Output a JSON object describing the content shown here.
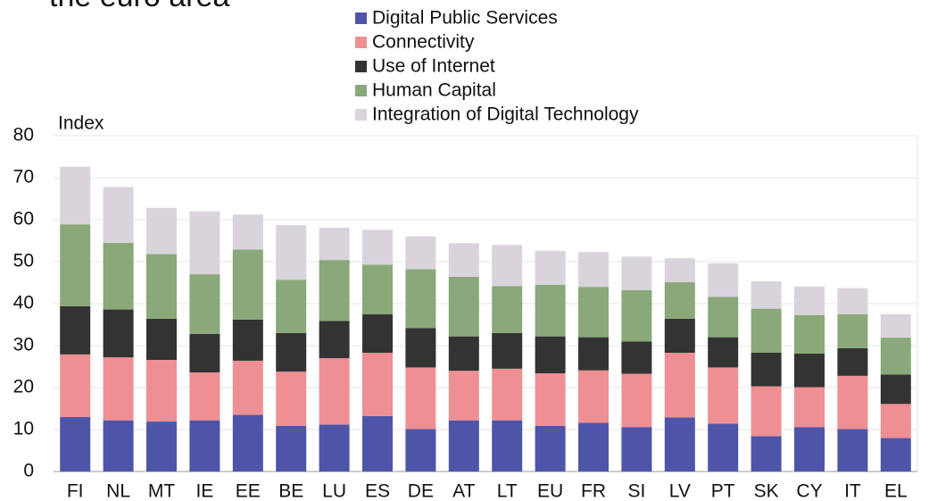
{
  "chart_data": {
    "type": "stacked_bar",
    "title": "the euro area",
    "ylabel": "Index",
    "categories": [
      "FI",
      "NL",
      "MT",
      "IE",
      "EE",
      "BE",
      "LU",
      "ES",
      "DE",
      "AT",
      "LT",
      "EU",
      "FR",
      "SI",
      "LV",
      "PT",
      "SK",
      "CY",
      "IT",
      "EL"
    ],
    "series": [
      {
        "name": "Digital Public Services",
        "color": "#4e55a8",
        "values": [
          13,
          12.2,
          11.9,
          12.2,
          13.5,
          10.9,
          11.2,
          13.2,
          10.1,
          12.2,
          12.2,
          10.9,
          11.6,
          10.6,
          12.9,
          11.4,
          8.4,
          10.6,
          10.1,
          8
        ]
      },
      {
        "name": "Connectivity",
        "color": "#ee8f94",
        "values": [
          14.9,
          15,
          14.7,
          11.4,
          12.9,
          12.9,
          15.8,
          15.1,
          14.7,
          11.8,
          12.3,
          12.5,
          12.5,
          12.7,
          15.4,
          13.4,
          11.9,
          9.5,
          12.7,
          8.1
        ]
      },
      {
        "name": "Use of Internet",
        "color": "#333333",
        "values": [
          11.5,
          11.4,
          9.8,
          9.2,
          9.8,
          9.2,
          8.9,
          9.2,
          9.4,
          8.2,
          8.5,
          8.8,
          7.9,
          7.7,
          8.1,
          7.2,
          8,
          8,
          6.6,
          7
        ]
      },
      {
        "name": "Human Capital",
        "color": "#8aa87a",
        "values": [
          19.5,
          15.9,
          15.4,
          14.2,
          16.7,
          12.7,
          14.5,
          11.8,
          14,
          14.2,
          11.2,
          12.3,
          12,
          12.2,
          8.7,
          9.6,
          10.5,
          9.2,
          8.1,
          8.8
        ]
      },
      {
        "name": "Integration of Digital Technology",
        "color": "#d9d4dc",
        "values": [
          13.7,
          13.3,
          11,
          15,
          8.3,
          13,
          7.7,
          8.3,
          7.8,
          8,
          9.8,
          8.1,
          8.3,
          8,
          5.7,
          8,
          6.5,
          6.8,
          6.2,
          5.6
        ]
      }
    ],
    "ylim": [
      0,
      80
    ],
    "yticks": [
      0,
      10,
      20,
      30,
      40,
      50,
      60,
      70,
      80
    ],
    "grid": true
  }
}
